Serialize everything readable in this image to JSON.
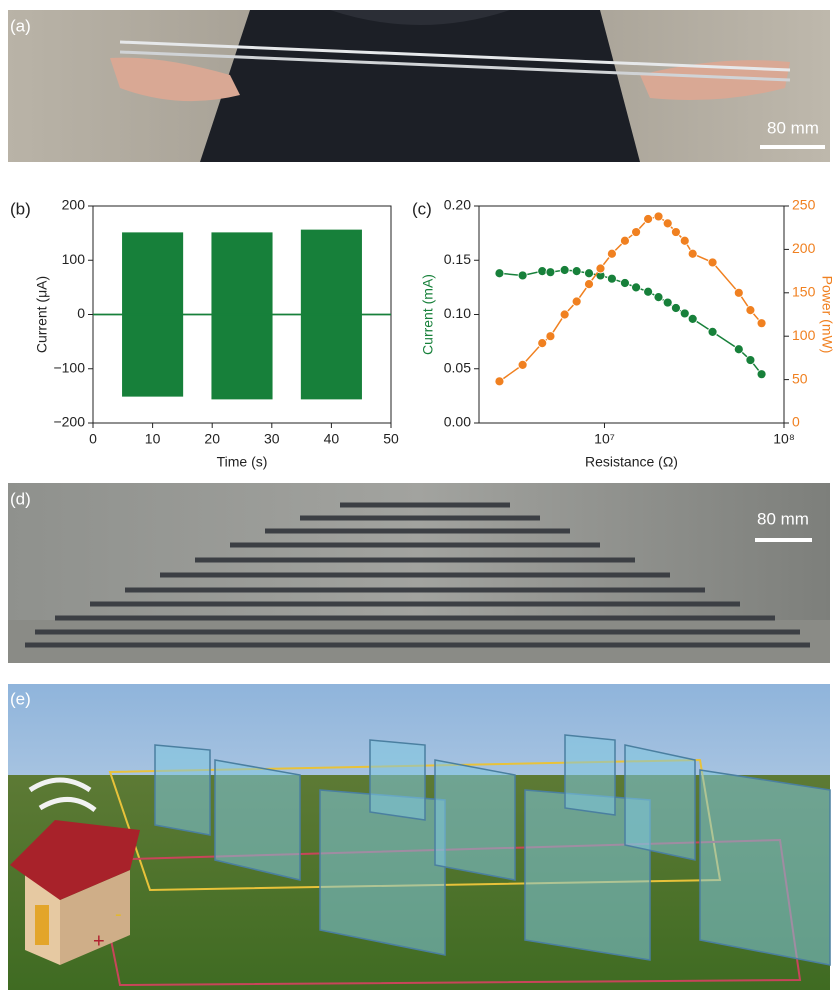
{
  "panels": {
    "a": {
      "label": "(a)",
      "scale_bar": "80 mm"
    },
    "d": {
      "label": "(d)",
      "scale_bar": "80 mm"
    },
    "e": {
      "label": "(e)"
    }
  },
  "chart_data": [
    {
      "type": "area",
      "label": "(b)",
      "x_label": "Time (s)",
      "y_label": "Current (μA)",
      "x": [
        0,
        5,
        5,
        15,
        15,
        20,
        20,
        30,
        30,
        35,
        35,
        45,
        45,
        50
      ],
      "series": [
        {
          "color": "#17803a",
          "values": [
            0,
            0,
            150,
            150,
            0,
            0,
            150,
            150,
            0,
            0,
            155,
            155,
            0,
            0
          ]
        },
        {
          "color": "#17803a",
          "values": [
            0,
            0,
            -150,
            -150,
            0,
            0,
            -155,
            -155,
            0,
            0,
            -155,
            -155,
            0,
            0
          ]
        }
      ],
      "xlim": [
        0,
        50
      ],
      "xticks": [
        0,
        10,
        20,
        30,
        40,
        50
      ],
      "ylim": [
        -200,
        200
      ],
      "yticks": [
        {
          "value": -200,
          "label": "−200"
        },
        {
          "value": -100,
          "label": "−100"
        },
        0,
        100,
        200
      ]
    },
    {
      "type": "line",
      "label": "(c)",
      "x_label": "Resistance (Ω)",
      "y_label": "Current (mA)",
      "y2_label": "Power (mW)",
      "x_scale": "log",
      "x": [
        2600000,
        3500000,
        4500000,
        5000000,
        6000000,
        7000000,
        8200000,
        9500000,
        11000000,
        13000000,
        15000000,
        17500000,
        20000000,
        22500000,
        25000000,
        28000000,
        31000000,
        40000000,
        56000000,
        65000000,
        75000000
      ],
      "series": [
        {
          "name": "Current",
          "color": "#17803a",
          "values": [
            0.138,
            0.136,
            0.14,
            0.139,
            0.141,
            0.14,
            0.138,
            0.136,
            0.133,
            0.129,
            0.125,
            0.121,
            0.116,
            0.111,
            0.106,
            0.101,
            0.096,
            0.084,
            0.068,
            0.058,
            0.045
          ]
        },
        {
          "name": "Power",
          "color": "#f08020",
          "axis": "y2",
          "values": [
            48,
            67,
            92,
            100,
            125,
            140,
            160,
            178,
            195,
            210,
            220,
            235,
            238,
            230,
            220,
            210,
            195,
            185,
            150,
            130,
            115
          ]
        }
      ],
      "xlim": [
        2000000,
        100000000
      ],
      "xticks": [
        {
          "value": 10000000,
          "label": "10⁷"
        },
        {
          "value": 100000000,
          "label": "10⁸"
        }
      ],
      "ylim": [
        0,
        0.2
      ],
      "yticks": [
        {
          "value": 0,
          "label": "0.00"
        },
        {
          "value": 0.05,
          "label": "0.05"
        },
        {
          "value": 0.1,
          "label": "0.10"
        },
        {
          "value": 0.15,
          "label": "0.15"
        },
        {
          "value": 0.2,
          "label": "0.20"
        }
      ],
      "y2lim": [
        0,
        250
      ],
      "y2ticks": [
        0,
        50,
        100,
        150,
        200,
        250
      ]
    }
  ]
}
